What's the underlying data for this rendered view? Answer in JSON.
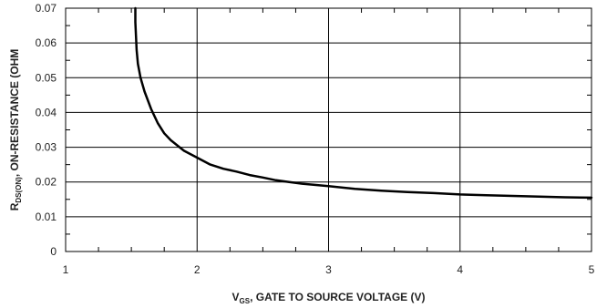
{
  "chart_data": {
    "type": "line",
    "xlabel_parts": {
      "main": "V",
      "sub": "GS",
      "rest": ", GATE TO SOURCE VOLTAGE (V)"
    },
    "ylabel_parts": {
      "main": "R",
      "sub": "DS(ON)",
      "rest": ", ON-RESISTANCE (OHM"
    },
    "xlim": [
      1,
      5
    ],
    "ylim": [
      0,
      0.07
    ],
    "x_ticks": [
      1,
      2,
      3,
      4,
      5
    ],
    "x_tick_labels": [
      "1",
      "2",
      "3",
      "4",
      "5"
    ],
    "y_ticks": [
      0,
      0.01,
      0.02,
      0.03,
      0.04,
      0.05,
      0.06,
      0.07
    ],
    "y_tick_labels": [
      "0",
      "0.01",
      "0.02",
      "0.03",
      "0.04",
      "0.05",
      "0.06",
      "0.07"
    ],
    "grid": true,
    "series": [
      {
        "x": [
          1.53,
          1.53,
          1.535,
          1.54,
          1.55,
          1.57,
          1.6,
          1.65,
          1.7,
          1.75,
          1.8,
          1.9,
          2.0,
          2.1,
          2.2,
          2.3,
          2.4,
          2.5,
          2.6,
          2.7,
          2.8,
          3.0,
          3.2,
          3.4,
          3.6,
          3.8,
          4.0,
          4.2,
          4.4,
          4.6,
          4.8,
          5.0
        ],
        "y": [
          0.07,
          0.066,
          0.062,
          0.058,
          0.054,
          0.05,
          0.046,
          0.041,
          0.037,
          0.034,
          0.032,
          0.029,
          0.027,
          0.025,
          0.0238,
          0.023,
          0.022,
          0.0213,
          0.0205,
          0.02,
          0.0195,
          0.0188,
          0.018,
          0.0175,
          0.0171,
          0.0168,
          0.0164,
          0.0162,
          0.016,
          0.0158,
          0.0156,
          0.0155
        ]
      }
    ]
  }
}
